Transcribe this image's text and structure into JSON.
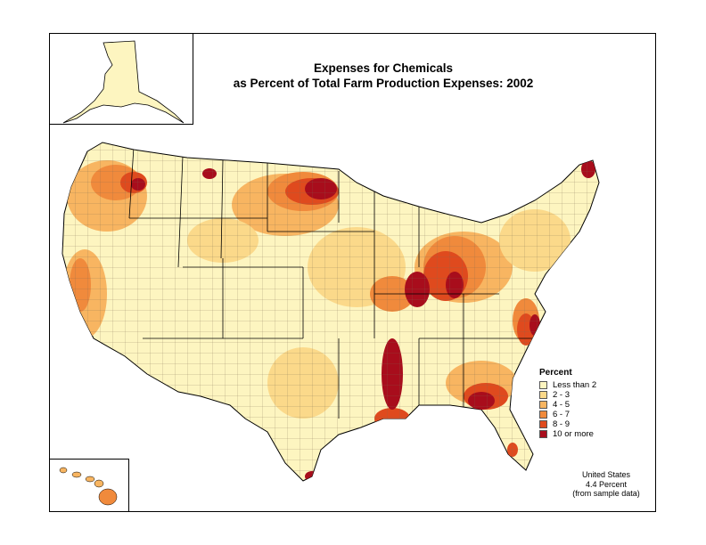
{
  "title": {
    "line1": "Expenses for Chemicals",
    "line2": "as Percent of Total Farm Production Expenses: 2002"
  },
  "legend": {
    "title": "Percent",
    "items": [
      {
        "label": "Less than 2",
        "color": "#fdf5c0"
      },
      {
        "label": "2 - 3",
        "color": "#fbd98a"
      },
      {
        "label": "4 - 5",
        "color": "#f8b561"
      },
      {
        "label": "6 - 7",
        "color": "#f08a3c"
      },
      {
        "label": "8 - 9",
        "color": "#df4a1e"
      },
      {
        "label": "10 or more",
        "color": "#a80d1c"
      }
    ]
  },
  "summary": {
    "line1": "United States",
    "line2": "4.4 Percent",
    "line3": "(from sample data)"
  }
}
